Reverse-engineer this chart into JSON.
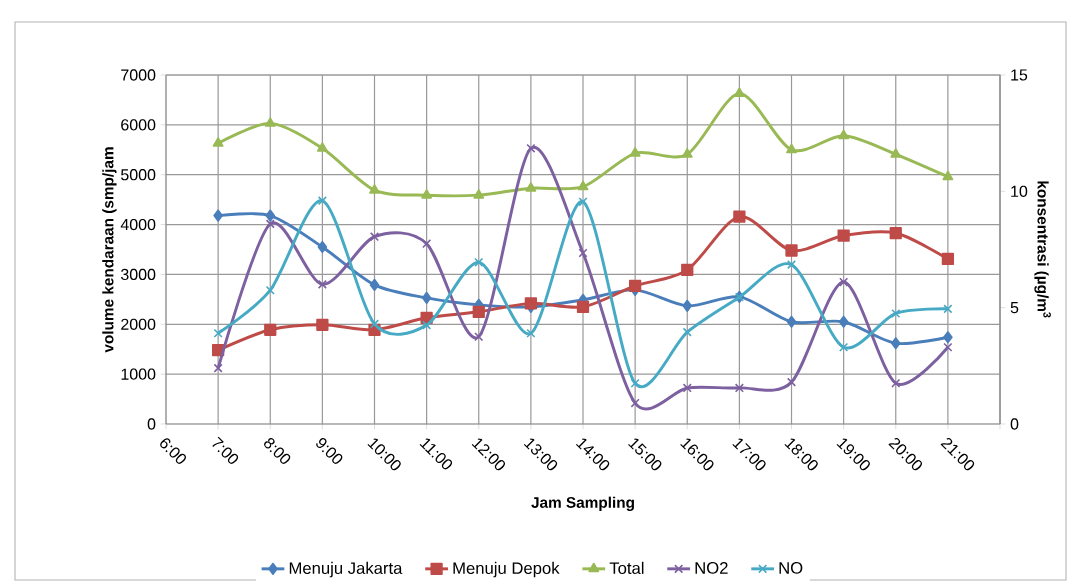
{
  "chart_data": {
    "type": "line",
    "xlabel": "Jam Sampling",
    "ylabel": "volume kendaraan (smp/jam",
    "y2label": "konsentrasi (µg/m$^{3}$",
    "categories": [
      "6:00",
      "7:00",
      "8:00",
      "9:00",
      "10:00",
      "11:00",
      "12:00",
      "13:00",
      "14:00",
      "15:00",
      "16:00",
      "17:00",
      "18:00",
      "19:00",
      "20:00",
      "21:00"
    ],
    "series": [
      {
        "name": "Menuju Jakarta",
        "color": "#4a7ebb",
        "marker": "diamond",
        "values": [
          null,
          4180,
          4180,
          3550,
          2790,
          2530,
          2390,
          2350,
          2490,
          2690,
          2370,
          2550,
          2050,
          2050,
          1620,
          1740
        ]
      },
      {
        "name": "Menuju Depok",
        "color": "#be4b48",
        "marker": "square",
        "values": [
          null,
          1480,
          1890,
          1990,
          1890,
          2130,
          2250,
          2420,
          2350,
          2770,
          3090,
          4160,
          3480,
          3780,
          3830,
          3310
        ]
      },
      {
        "name": "Total",
        "color": "#98b954",
        "marker": "triangle",
        "values": [
          null,
          5630,
          6030,
          5530,
          4690,
          4590,
          4590,
          4730,
          4760,
          5430,
          5410,
          6630,
          5500,
          5780,
          5410,
          4960
        ]
      },
      {
        "name": "NO2",
        "color": "#7d60a0",
        "marker": "cross",
        "axis": "y2",
        "values": [
          null,
          2.4,
          8.6,
          6.0,
          8.05,
          7.75,
          3.75,
          11.85,
          7.35,
          0.9,
          1.55,
          1.55,
          1.8,
          6.1,
          1.75,
          3.3
        ]
      },
      {
        "name": "NO",
        "color": "#46aac5",
        "marker": "cross",
        "axis": "y2",
        "values": [
          null,
          3.9,
          5.75,
          9.6,
          4.3,
          4.25,
          6.95,
          3.9,
          9.55,
          1.75,
          3.95,
          5.45,
          6.85,
          3.3,
          4.75,
          4.95
        ]
      }
    ],
    "ylim": [
      0,
      7000
    ],
    "yticks": [
      0,
      1000,
      2000,
      3000,
      4000,
      5000,
      6000,
      7000
    ],
    "y2lim": [
      0,
      15
    ],
    "y2ticks": [
      0,
      5,
      10,
      15
    ],
    "grid": true,
    "legend": "bottom",
    "line_style": "solid"
  }
}
